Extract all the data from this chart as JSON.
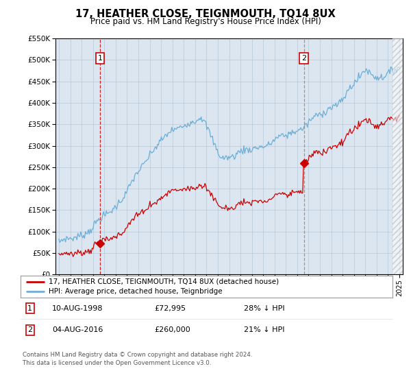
{
  "title": "17, HEATHER CLOSE, TEIGNMOUTH, TQ14 8UX",
  "subtitle": "Price paid vs. HM Land Registry's House Price Index (HPI)",
  "legend_line1": "17, HEATHER CLOSE, TEIGNMOUTH, TQ14 8UX (detached house)",
  "legend_line2": "HPI: Average price, detached house, Teignbridge",
  "annotation1_label": "1",
  "annotation1_date": "10-AUG-1998",
  "annotation1_price": "£72,995",
  "annotation1_hpi": "28% ↓ HPI",
  "annotation1_year": 1998.62,
  "annotation1_value": 72995,
  "annotation2_label": "2",
  "annotation2_date": "04-AUG-2016",
  "annotation2_price": "£260,000",
  "annotation2_hpi": "21% ↓ HPI",
  "annotation2_year": 2016.59,
  "annotation2_value": 260000,
  "footer": "Contains HM Land Registry data © Crown copyright and database right 2024.\nThis data is licensed under the Open Government Licence v3.0.",
  "hpi_color": "#6baed6",
  "price_color": "#cc0000",
  "bg_color": "#dce6f1",
  "fig_bg": "#ffffff",
  "ylim": [
    0,
    550000
  ],
  "xlim_start": 1994.7,
  "xlim_end": 2025.3,
  "yticks": [
    0,
    50000,
    100000,
    150000,
    200000,
    250000,
    300000,
    350000,
    400000,
    450000,
    500000,
    550000
  ]
}
